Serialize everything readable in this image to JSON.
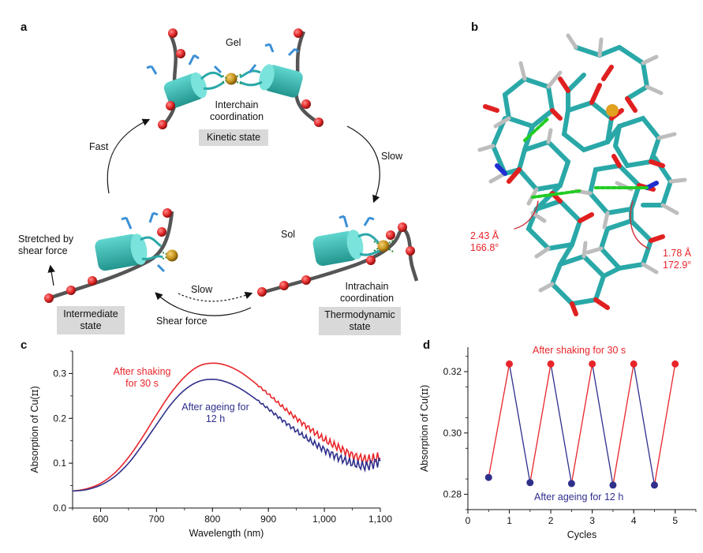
{
  "panel_a": {
    "label": "a",
    "gel": "Gel",
    "interchain_line1": "Interchain",
    "interchain_line2": "coordination",
    "kinetic_state": "Kinetic state",
    "fast": "Fast",
    "slow_right": "Slow",
    "stretched_line1": "Stretched by",
    "stretched_line2": "shear force",
    "sol": "Sol",
    "slow_bottom": "Slow",
    "shear_force": "Shear force",
    "intermediate_line1": "Intermediate",
    "intermediate_line2": "state",
    "intrachain_line1": "Intrachain",
    "intrachain_line2": "coordination",
    "thermo_line1": "Thermodynamic",
    "thermo_line2": "state",
    "colors": {
      "helix": "#3bbdb5",
      "bead": "#e42b2b",
      "chain": "#555555",
      "copper": "#c8961e",
      "label_box": "#d9d9d9"
    }
  },
  "panel_b": {
    "label": "b",
    "left_dist": "2.43 Å",
    "left_angle": "166.8°",
    "right_dist": "1.78 Å",
    "right_angle": "172.9°",
    "colors": {
      "carbon": "#2aa8a8",
      "oxygen": "#e02020",
      "hydrogen": "#bdbdbd",
      "nitrogen": "#1f2fd0",
      "copper": "#e0a020",
      "hbond": "#22cc22"
    }
  },
  "panel_c": {
    "label": "c",
    "label_shake_1": "After shaking",
    "label_shake_2": "for 30 s",
    "label_age_1": "After ageing for",
    "label_age_2": "12 h",
    "chart_data": {
      "type": "line",
      "xlabel": "Wavelength (nm)",
      "ylabel": "Absorption of Cu(ɪɪ)",
      "xlim": [
        550,
        1100
      ],
      "ylim": [
        0,
        0.35
      ],
      "xticks": [
        600,
        700,
        800,
        900,
        1000,
        1100
      ],
      "xtick_labels": [
        "600",
        "700",
        "800",
        "900",
        "1,000",
        "1,100"
      ],
      "yticks": [
        0,
        0.1,
        0.2,
        0.3
      ],
      "ytick_labels": [
        "0.0",
        "0.1",
        "0.2",
        "0.3"
      ],
      "series": [
        {
          "name": "After shaking for 30 s",
          "color": "#e8252a",
          "x": [
            550,
            575,
            600,
            625,
            650,
            675,
            700,
            725,
            750,
            775,
            800,
            825,
            850,
            875,
            900,
            925,
            950,
            975,
            1000,
            1025,
            1050,
            1075,
            1100
          ],
          "y": [
            0.038,
            0.043,
            0.055,
            0.078,
            0.113,
            0.158,
            0.208,
            0.255,
            0.292,
            0.316,
            0.323,
            0.318,
            0.303,
            0.28,
            0.254,
            0.226,
            0.2,
            0.176,
            0.153,
            0.135,
            0.118,
            0.108,
            0.112
          ]
        },
        {
          "name": "After ageing for 12 h",
          "color": "#2f2f8c",
          "x": [
            550,
            575,
            600,
            625,
            650,
            675,
            700,
            725,
            750,
            775,
            800,
            825,
            850,
            875,
            900,
            925,
            950,
            975,
            1000,
            1025,
            1050,
            1075,
            1100
          ],
          "y": [
            0.038,
            0.041,
            0.051,
            0.07,
            0.1,
            0.141,
            0.186,
            0.23,
            0.263,
            0.282,
            0.287,
            0.281,
            0.266,
            0.245,
            0.221,
            0.196,
            0.172,
            0.15,
            0.13,
            0.113,
            0.1,
            0.094,
            0.105
          ]
        }
      ]
    }
  },
  "panel_d": {
    "label": "d",
    "label_shake": "After shaking for 30 s",
    "label_age": "After ageing for 12 h",
    "chart_data": {
      "type": "line",
      "xlabel": "Cycles",
      "ylabel": "Absorption of Cu(ɪɪ)",
      "xlim": [
        0,
        5.5
      ],
      "ylim": [
        0.275,
        0.328
      ],
      "xticks": [
        0,
        1,
        2,
        3,
        4,
        5
      ],
      "xtick_labels": [
        "0",
        "1",
        "2",
        "3",
        "4",
        "5"
      ],
      "yticks": [
        0.28,
        0.3,
        0.32
      ],
      "ytick_labels": [
        "0.28",
        "0.30",
        "0.32"
      ],
      "points": [
        {
          "x": 0.5,
          "y": 0.2855,
          "state": "aged"
        },
        {
          "x": 1.0,
          "y": 0.3225,
          "state": "shaken"
        },
        {
          "x": 1.5,
          "y": 0.2838,
          "state": "aged"
        },
        {
          "x": 2.0,
          "y": 0.3225,
          "state": "shaken"
        },
        {
          "x": 2.5,
          "y": 0.2835,
          "state": "aged"
        },
        {
          "x": 3.0,
          "y": 0.3225,
          "state": "shaken"
        },
        {
          "x": 3.5,
          "y": 0.283,
          "state": "aged"
        },
        {
          "x": 4.0,
          "y": 0.3225,
          "state": "shaken"
        },
        {
          "x": 4.5,
          "y": 0.283,
          "state": "aged"
        },
        {
          "x": 5.0,
          "y": 0.3225,
          "state": "shaken"
        }
      ],
      "colors": {
        "shaken": "#e8252a",
        "aged": "#2f2f8c"
      }
    }
  }
}
